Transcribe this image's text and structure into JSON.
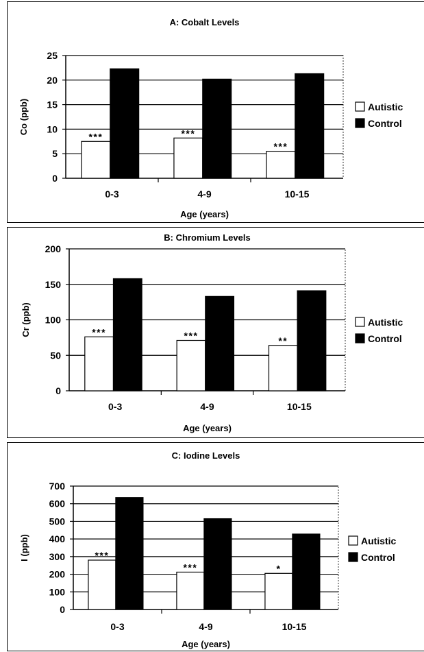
{
  "legend_colors": {
    "autistic": "#ffffff",
    "control": "#000000"
  },
  "chart_data": [
    {
      "type": "bar",
      "title": "A:  Cobalt Levels",
      "xlabel": "Age (years)",
      "ylabel": "Co  (ppb)",
      "categories": [
        "0-3",
        "4-9",
        "10-15"
      ],
      "ylim": [
        0,
        25
      ],
      "yticks": [
        0,
        5,
        10,
        15,
        20,
        25
      ],
      "grid": true,
      "legend_position": "right",
      "series": [
        {
          "name": "Autistic",
          "values": [
            7.5,
            8.2,
            5.5
          ],
          "annotations": [
            "***",
            "***",
            "***"
          ]
        },
        {
          "name": "Control",
          "values": [
            22.3,
            20.2,
            21.3
          ],
          "annotations": [
            "",
            "",
            ""
          ]
        }
      ]
    },
    {
      "type": "bar",
      "title": "B:  Chromium Levels",
      "xlabel": "Age (years)",
      "ylabel": "Cr  (ppb)",
      "categories": [
        "0-3",
        "4-9",
        "10-15"
      ],
      "ylim": [
        0,
        200
      ],
      "yticks": [
        0,
        50,
        100,
        150,
        200
      ],
      "grid": true,
      "legend_position": "right",
      "series": [
        {
          "name": "Autistic",
          "values": [
            76,
            71,
            64
          ],
          "annotations": [
            "***",
            "***",
            "**"
          ]
        },
        {
          "name": "Control",
          "values": [
            158,
            133,
            141
          ],
          "annotations": [
            "",
            "",
            ""
          ]
        }
      ]
    },
    {
      "type": "bar",
      "title": "C:  Iodine Levels",
      "xlabel": "Age (years)",
      "ylabel": "I  (ppb)",
      "categories": [
        "0-3",
        "4-9",
        "10-15"
      ],
      "ylim": [
        0,
        700
      ],
      "yticks": [
        0,
        100,
        200,
        300,
        400,
        500,
        600,
        700
      ],
      "grid": true,
      "legend_position": "right",
      "series": [
        {
          "name": "Autistic",
          "values": [
            280,
            212,
            205
          ],
          "annotations": [
            "***",
            "***",
            "*"
          ]
        },
        {
          "name": "Control",
          "values": [
            635,
            515,
            428
          ],
          "annotations": [
            "",
            "",
            ""
          ]
        }
      ]
    }
  ]
}
